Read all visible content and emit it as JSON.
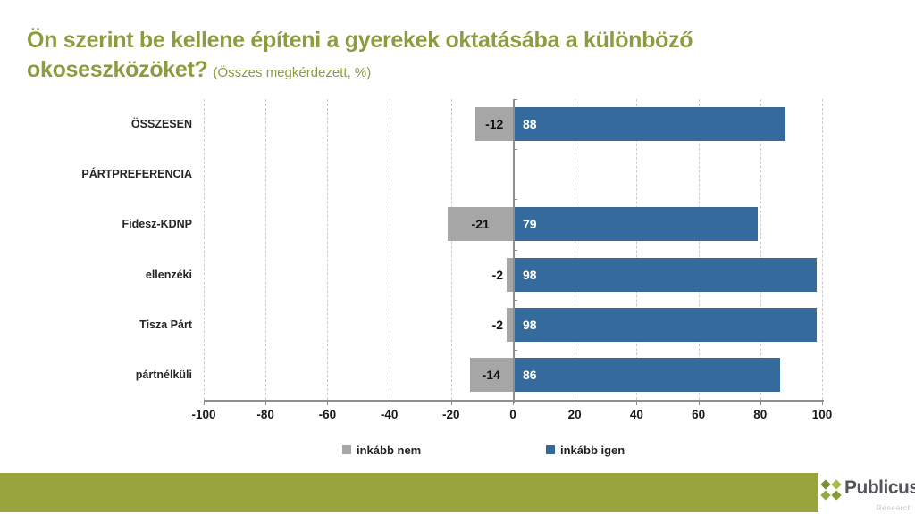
{
  "title": {
    "line1": "Ön szerint be kellene építeni a gyerekek oktatásába a különböző",
    "line2": "okoseszközöket?",
    "subtitle": "(Összes megkérdezett, %)"
  },
  "chart_data": {
    "type": "bar",
    "orientation": "horizontal-diverging",
    "title": "Ön szerint be kellene építeni a gyerekek oktatásába a különböző okoseszközöket? (Összes megkérdezett, %)",
    "categories": [
      "ÖSSZESEN",
      "PÁRTPREFERENCIA",
      "Fidesz-KDNP",
      "ellenzéki",
      "Tisza Párt",
      "pártnélküli"
    ],
    "series": [
      {
        "name": "inkább nem",
        "color": "#A6A6A6",
        "values": [
          -12,
          null,
          -21,
          -2,
          -2,
          -14
        ]
      },
      {
        "name": "inkább igen",
        "color": "#346A9C",
        "values": [
          88,
          null,
          79,
          98,
          98,
          86
        ]
      }
    ],
    "xlim": [
      -100,
      100
    ],
    "xticks": [
      -100,
      -80,
      -60,
      -40,
      -20,
      0,
      20,
      40,
      60,
      80,
      100
    ],
    "grid": "vertical-dashed",
    "legend_position": "bottom"
  },
  "colors": {
    "title": "#8D9C40",
    "footer_band": "#99A43E",
    "bar_negative": "#A6A6A6",
    "bar_positive": "#346A9C",
    "gridline": "#CBCBCB",
    "axis": "#8E8E8E"
  },
  "footer": {
    "logo": {
      "name": "Publicus",
      "sub": "Research"
    }
  }
}
